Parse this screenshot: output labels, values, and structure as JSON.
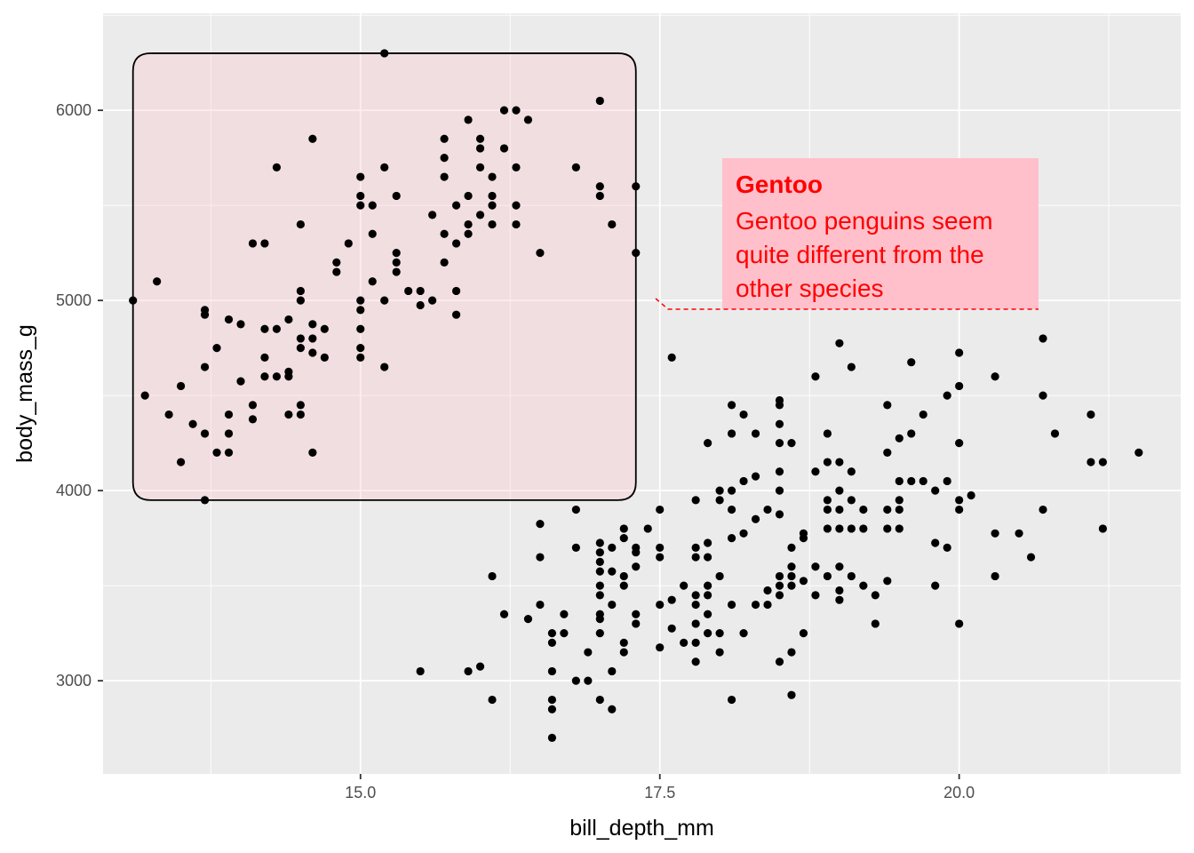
{
  "chart_data": {
    "type": "scatter",
    "xlabel": "bill_depth_mm",
    "ylabel": "body_mass_g",
    "xlim": [
      12.85,
      21.85
    ],
    "ylim": [
      2510,
      6510
    ],
    "x_ticks": [
      15.0,
      17.5,
      20.0
    ],
    "x_tick_labels": [
      "15.0",
      "17.5",
      "20.0"
    ],
    "y_ticks": [
      3000,
      4000,
      5000,
      6000
    ],
    "y_tick_labels": [
      "3000",
      "4000",
      "5000",
      "6000"
    ],
    "grid": true,
    "highlight_box": {
      "x": [
        13.1,
        17.3
      ],
      "y": [
        3950,
        6300
      ]
    },
    "colors": {
      "panel": "#ebebeb",
      "grid": "#ffffff",
      "point": "#000000",
      "highlight_fill": "#ffc0cb",
      "label_fill": "#ffc0cb",
      "label_text": "#ff0000"
    },
    "annotation": {
      "title": "Gentoo",
      "lines": [
        "Gentoo penguins seem",
        "quite different from the",
        "other species"
      ]
    },
    "points": [
      [
        13.1,
        5000
      ],
      [
        13.2,
        4500
      ],
      [
        13.3,
        5100
      ],
      [
        13.4,
        4400
      ],
      [
        13.5,
        4550
      ],
      [
        13.5,
        4150
      ],
      [
        13.6,
        4350
      ],
      [
        13.7,
        4950
      ],
      [
        13.7,
        4925
      ],
      [
        13.7,
        4650
      ],
      [
        13.7,
        4300
      ],
      [
        13.7,
        3950
      ],
      [
        13.8,
        4750
      ],
      [
        13.8,
        4200
      ],
      [
        13.9,
        4900
      ],
      [
        13.9,
        4400
      ],
      [
        13.9,
        4300
      ],
      [
        13.9,
        4200
      ],
      [
        14.0,
        4875
      ],
      [
        14.0,
        4575
      ],
      [
        14.1,
        5300
      ],
      [
        14.1,
        4450
      ],
      [
        14.1,
        4375
      ],
      [
        14.2,
        5300
      ],
      [
        14.2,
        4850
      ],
      [
        14.2,
        4700
      ],
      [
        14.2,
        4600
      ],
      [
        14.3,
        5700
      ],
      [
        14.3,
        4850
      ],
      [
        14.3,
        4600
      ],
      [
        14.4,
        4900
      ],
      [
        14.4,
        4625
      ],
      [
        14.4,
        4600
      ],
      [
        14.4,
        4400
      ],
      [
        14.5,
        5400
      ],
      [
        14.5,
        5050
      ],
      [
        14.5,
        5000
      ],
      [
        14.5,
        4800
      ],
      [
        14.5,
        4750
      ],
      [
        14.5,
        4450
      ],
      [
        14.5,
        4400
      ],
      [
        14.6,
        5850
      ],
      [
        14.6,
        4875
      ],
      [
        14.6,
        4800
      ],
      [
        14.6,
        4725
      ],
      [
        14.6,
        4200
      ],
      [
        14.7,
        4850
      ],
      [
        14.7,
        4700
      ],
      [
        14.8,
        5200
      ],
      [
        14.8,
        5150
      ],
      [
        14.9,
        5300
      ],
      [
        15.0,
        5650
      ],
      [
        15.0,
        5550
      ],
      [
        15.0,
        5500
      ],
      [
        15.0,
        5000
      ],
      [
        15.0,
        4950
      ],
      [
        15.0,
        4850
      ],
      [
        15.0,
        4750
      ],
      [
        15.0,
        4700
      ],
      [
        15.1,
        5500
      ],
      [
        15.1,
        5350
      ],
      [
        15.1,
        5100
      ],
      [
        15.2,
        6300
      ],
      [
        15.2,
        5700
      ],
      [
        15.2,
        5000
      ],
      [
        15.2,
        4650
      ],
      [
        15.3,
        5550
      ],
      [
        15.3,
        5250
      ],
      [
        15.3,
        5200
      ],
      [
        15.3,
        5150
      ],
      [
        15.4,
        5050
      ],
      [
        15.5,
        5050
      ],
      [
        15.5,
        4975
      ],
      [
        15.6,
        5450
      ],
      [
        15.6,
        5000
      ],
      [
        15.7,
        5850
      ],
      [
        15.7,
        5750
      ],
      [
        15.7,
        5650
      ],
      [
        15.7,
        5350
      ],
      [
        15.7,
        5200
      ],
      [
        15.8,
        5500
      ],
      [
        15.8,
        5300
      ],
      [
        15.8,
        5050
      ],
      [
        15.8,
        4925
      ],
      [
        15.9,
        5950
      ],
      [
        15.9,
        5550
      ],
      [
        15.9,
        5400
      ],
      [
        15.9,
        5350
      ],
      [
        16.0,
        5850
      ],
      [
        16.0,
        5800
      ],
      [
        16.0,
        5700
      ],
      [
        16.0,
        5450
      ],
      [
        16.1,
        5650
      ],
      [
        16.1,
        5550
      ],
      [
        16.1,
        5500
      ],
      [
        16.1,
        5400
      ],
      [
        16.2,
        6000
      ],
      [
        16.2,
        5800
      ],
      [
        16.3,
        6000
      ],
      [
        16.3,
        5700
      ],
      [
        16.3,
        5500
      ],
      [
        16.3,
        5400
      ],
      [
        16.4,
        5950
      ],
      [
        16.5,
        5250
      ],
      [
        16.8,
        5700
      ],
      [
        17.0,
        6050
      ],
      [
        17.0,
        5600
      ],
      [
        17.0,
        5550
      ],
      [
        17.1,
        5400
      ],
      [
        17.3,
        5600
      ],
      [
        17.3,
        5250
      ],
      [
        15.5,
        3050
      ],
      [
        15.9,
        3050
      ],
      [
        16.0,
        3075
      ],
      [
        16.1,
        3550
      ],
      [
        16.1,
        2900
      ],
      [
        16.2,
        3350
      ],
      [
        16.4,
        3325
      ],
      [
        16.5,
        3825
      ],
      [
        16.5,
        3650
      ],
      [
        16.5,
        3400
      ],
      [
        16.6,
        3250
      ],
      [
        16.6,
        3200
      ],
      [
        16.6,
        3050
      ],
      [
        16.6,
        2900
      ],
      [
        16.6,
        2850
      ],
      [
        16.6,
        2700
      ],
      [
        16.7,
        3350
      ],
      [
        16.7,
        3250
      ],
      [
        16.8,
        3900
      ],
      [
        16.8,
        3700
      ],
      [
        16.8,
        3000
      ],
      [
        16.9,
        3150
      ],
      [
        16.9,
        3000
      ],
      [
        17.0,
        3725
      ],
      [
        17.0,
        3675
      ],
      [
        17.0,
        3625
      ],
      [
        17.0,
        3575
      ],
      [
        17.0,
        3500
      ],
      [
        17.0,
        3450
      ],
      [
        17.0,
        3350
      ],
      [
        17.0,
        3325
      ],
      [
        17.0,
        3250
      ],
      [
        17.0,
        2900
      ],
      [
        17.1,
        3700
      ],
      [
        17.1,
        3575
      ],
      [
        17.1,
        3400
      ],
      [
        17.1,
        3050
      ],
      [
        17.1,
        2850
      ],
      [
        17.2,
        3800
      ],
      [
        17.2,
        3750
      ],
      [
        17.2,
        3550
      ],
      [
        17.2,
        3500
      ],
      [
        17.2,
        3200
      ],
      [
        17.2,
        3150
      ],
      [
        17.3,
        3700
      ],
      [
        17.3,
        3675
      ],
      [
        17.3,
        3600
      ],
      [
        17.3,
        3350
      ],
      [
        17.3,
        3300
      ],
      [
        17.4,
        3800
      ],
      [
        17.5,
        3900
      ],
      [
        17.5,
        3700
      ],
      [
        17.5,
        3650
      ],
      [
        17.5,
        3400
      ],
      [
        17.5,
        3175
      ],
      [
        17.6,
        4700
      ],
      [
        17.6,
        3425
      ],
      [
        17.6,
        3275
      ],
      [
        17.7,
        3500
      ],
      [
        17.7,
        3200
      ],
      [
        17.8,
        3950
      ],
      [
        17.8,
        3700
      ],
      [
        17.8,
        3650
      ],
      [
        17.8,
        3450
      ],
      [
        17.8,
        3400
      ],
      [
        17.8,
        3300
      ],
      [
        17.8,
        3200
      ],
      [
        17.8,
        3100
      ],
      [
        17.9,
        4250
      ],
      [
        17.9,
        3725
      ],
      [
        17.9,
        3650
      ],
      [
        17.9,
        3500
      ],
      [
        17.9,
        3450
      ],
      [
        17.9,
        3350
      ],
      [
        17.9,
        3250
      ],
      [
        18.0,
        4000
      ],
      [
        18.0,
        3950
      ],
      [
        18.0,
        3550
      ],
      [
        18.0,
        3250
      ],
      [
        18.0,
        3150
      ],
      [
        18.1,
        4450
      ],
      [
        18.1,
        4300
      ],
      [
        18.1,
        4000
      ],
      [
        18.1,
        3900
      ],
      [
        18.1,
        3750
      ],
      [
        18.1,
        3400
      ],
      [
        18.1,
        2900
      ],
      [
        18.2,
        4400
      ],
      [
        18.2,
        4050
      ],
      [
        18.2,
        3775
      ],
      [
        18.2,
        3250
      ],
      [
        18.3,
        4300
      ],
      [
        18.3,
        4075
      ],
      [
        18.3,
        3850
      ],
      [
        18.3,
        3400
      ],
      [
        18.4,
        3900
      ],
      [
        18.4,
        3475
      ],
      [
        18.4,
        3400
      ],
      [
        18.5,
        4475
      ],
      [
        18.5,
        4450
      ],
      [
        18.5,
        4350
      ],
      [
        18.5,
        4250
      ],
      [
        18.5,
        4100
      ],
      [
        18.5,
        4000
      ],
      [
        18.5,
        3875
      ],
      [
        18.5,
        3550
      ],
      [
        18.5,
        3500
      ],
      [
        18.5,
        3450
      ],
      [
        18.5,
        3100
      ],
      [
        18.6,
        4250
      ],
      [
        18.6,
        3700
      ],
      [
        18.6,
        3600
      ],
      [
        18.6,
        3550
      ],
      [
        18.6,
        3500
      ],
      [
        18.6,
        3150
      ],
      [
        18.6,
        2925
      ],
      [
        18.7,
        3775
      ],
      [
        18.7,
        3750
      ],
      [
        18.7,
        3525
      ],
      [
        18.7,
        3250
      ],
      [
        18.8,
        4600
      ],
      [
        18.8,
        4100
      ],
      [
        18.8,
        3600
      ],
      [
        18.8,
        3450
      ],
      [
        18.9,
        4300
      ],
      [
        18.9,
        4150
      ],
      [
        18.9,
        3950
      ],
      [
        18.9,
        3900
      ],
      [
        18.9,
        3800
      ],
      [
        18.9,
        3550
      ],
      [
        19.0,
        4775
      ],
      [
        19.0,
        4150
      ],
      [
        19.0,
        4000
      ],
      [
        19.0,
        3900
      ],
      [
        19.0,
        3800
      ],
      [
        19.0,
        3600
      ],
      [
        19.0,
        3475
      ],
      [
        19.0,
        3425
      ],
      [
        19.1,
        4650
      ],
      [
        19.1,
        4100
      ],
      [
        19.1,
        3950
      ],
      [
        19.1,
        3800
      ],
      [
        19.1,
        3550
      ],
      [
        19.2,
        3900
      ],
      [
        19.2,
        3800
      ],
      [
        19.2,
        3500
      ],
      [
        19.3,
        3300
      ],
      [
        19.3,
        3450
      ],
      [
        19.4,
        4450
      ],
      [
        19.4,
        4200
      ],
      [
        19.4,
        3900
      ],
      [
        19.4,
        3800
      ],
      [
        19.4,
        3525
      ],
      [
        19.5,
        4275
      ],
      [
        19.5,
        4050
      ],
      [
        19.5,
        3950
      ],
      [
        19.5,
        3900
      ],
      [
        19.5,
        3800
      ],
      [
        19.6,
        4675
      ],
      [
        19.6,
        4300
      ],
      [
        19.6,
        4050
      ],
      [
        19.7,
        4400
      ],
      [
        19.7,
        4050
      ],
      [
        19.8,
        3725
      ],
      [
        19.8,
        3500
      ],
      [
        19.8,
        4000
      ],
      [
        19.9,
        4500
      ],
      [
        19.9,
        4050
      ],
      [
        19.9,
        3700
      ],
      [
        20.0,
        4725
      ],
      [
        20.0,
        4550
      ],
      [
        20.0,
        4250
      ],
      [
        20.0,
        3950
      ],
      [
        20.0,
        3900
      ],
      [
        20.0,
        3300
      ],
      [
        20.1,
        3975
      ],
      [
        20.3,
        4600
      ],
      [
        20.3,
        3775
      ],
      [
        20.3,
        3550
      ],
      [
        20.5,
        3775
      ],
      [
        20.6,
        3650
      ],
      [
        20.7,
        4800
      ],
      [
        20.7,
        4500
      ],
      [
        20.7,
        3900
      ],
      [
        20.8,
        4300
      ],
      [
        21.1,
        4400
      ],
      [
        21.1,
        4150
      ],
      [
        21.2,
        4150
      ],
      [
        21.2,
        3800
      ],
      [
        21.5,
        4200
      ]
    ]
  }
}
